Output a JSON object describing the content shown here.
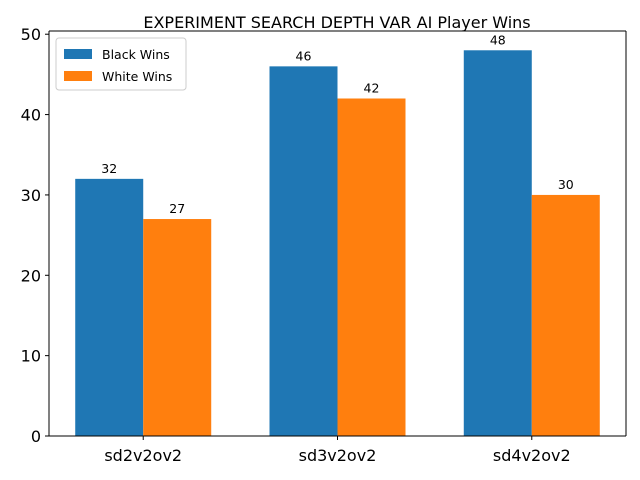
{
  "chart_data": {
    "type": "bar",
    "title": "EXPERIMENT SEARCH DEPTH VAR AI Player Wins",
    "xlabel": "",
    "ylabel": "",
    "categories": [
      "sd2v2ov2",
      "sd3v2ov2",
      "sd4v2ov2"
    ],
    "series": [
      {
        "name": "Black Wins",
        "values": [
          32,
          46,
          48
        ],
        "color": "#1f77b4"
      },
      {
        "name": "White Wins",
        "values": [
          27,
          42,
          30
        ],
        "color": "#ff7f0e"
      }
    ],
    "ylim": [
      0,
      50.4
    ],
    "yticks": [
      0,
      10,
      20,
      30,
      40,
      50
    ],
    "grid": false,
    "legend_position": "upper-left"
  }
}
